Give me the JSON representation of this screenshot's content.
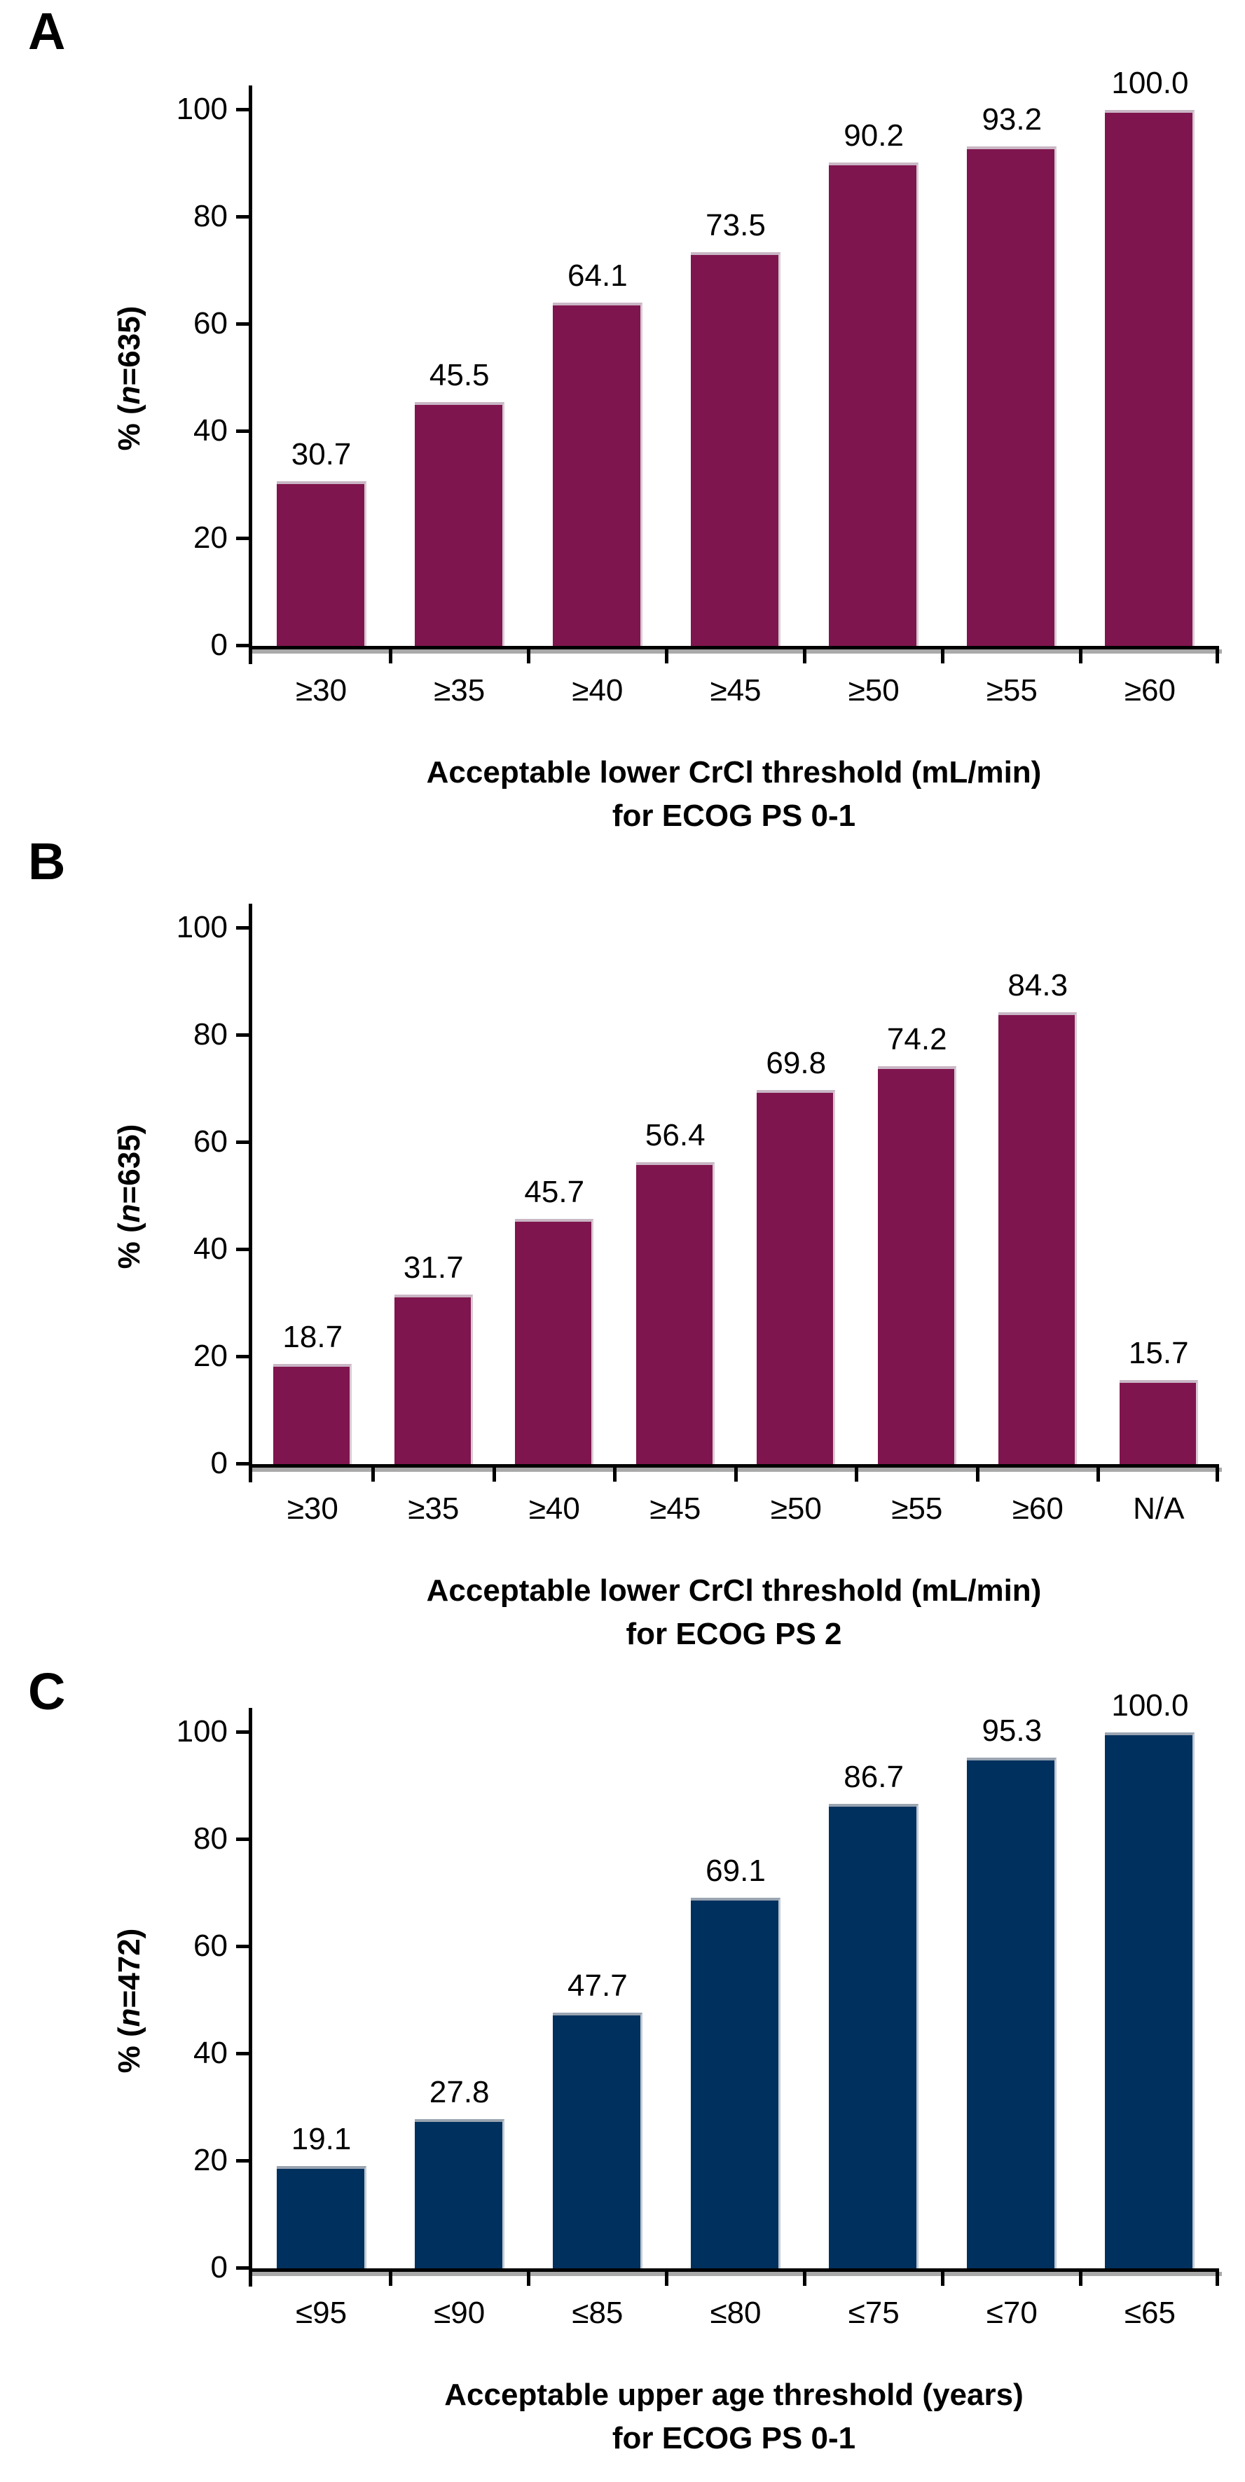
{
  "figure": {
    "background_color": "#FFFFFF",
    "text_color": "#000000",
    "axis_color": "#000000",
    "baseline_shadow_color": "#A9A9A9"
  },
  "chart_data": [
    {
      "panel": "A",
      "type": "bar",
      "categories": [
        "≥30",
        "≥35",
        "≥40",
        "≥45",
        "≥50",
        "≥55",
        "≥60"
      ],
      "values": [
        30.7,
        45.5,
        64.1,
        73.5,
        90.2,
        93.2,
        100.0
      ],
      "value_labels": [
        "30.7",
        "45.5",
        "64.1",
        "73.5",
        "90.2",
        "93.2",
        "100.0"
      ],
      "ylabel": {
        "prefix": "% (",
        "n": "n",
        "suffix": "=635)"
      },
      "xlabel_line1": "Acceptable lower CrCl threshold (mL/min)",
      "xlabel_line2": "for ECOG PS 0-1",
      "ylim": [
        0,
        100
      ],
      "yticks": [
        0,
        20,
        40,
        60,
        80,
        100
      ],
      "grid": false,
      "legend": "none",
      "bar_color": "#7F154E",
      "bar_top_edge": "#C9B6C4",
      "bar_right_edge": "#D8CBD4"
    },
    {
      "panel": "B",
      "type": "bar",
      "categories": [
        "≥30",
        "≥35",
        "≥40",
        "≥45",
        "≥50",
        "≥55",
        "≥60",
        "N/A"
      ],
      "values": [
        18.7,
        31.7,
        45.7,
        56.4,
        69.8,
        74.2,
        84.3,
        15.7
      ],
      "value_labels": [
        "18.7",
        "31.7",
        "45.7",
        "56.4",
        "69.8",
        "74.2",
        "84.3",
        "15.7"
      ],
      "ylabel": {
        "prefix": "% (",
        "n": "n",
        "suffix": "=635)"
      },
      "xlabel_line1": "Acceptable lower CrCl threshold (mL/min)",
      "xlabel_line2": "for ECOG PS 2",
      "ylim": [
        0,
        100
      ],
      "yticks": [
        0,
        20,
        40,
        60,
        80,
        100
      ],
      "grid": false,
      "legend": "none",
      "bar_color": "#7F154E",
      "bar_top_edge": "#C9B6C4",
      "bar_right_edge": "#D8CBD4"
    },
    {
      "panel": "C",
      "type": "bar",
      "categories": [
        "≤95",
        "≤90",
        "≤85",
        "≤80",
        "≤75",
        "≤70",
        "≤65"
      ],
      "values": [
        19.1,
        27.8,
        47.7,
        69.1,
        86.7,
        95.3,
        100.0
      ],
      "value_labels": [
        "19.1",
        "27.8",
        "47.7",
        "69.1",
        "86.7",
        "95.3",
        "100.0"
      ],
      "ylabel": {
        "prefix": "% (",
        "n": "n",
        "suffix": "=472)"
      },
      "xlabel_line1": "Acceptable upper age threshold (years)",
      "xlabel_line2": "for ECOG PS 0-1",
      "ylim": [
        0,
        100
      ],
      "yticks": [
        0,
        20,
        40,
        60,
        80,
        100
      ],
      "grid": false,
      "legend": "none",
      "bar_color": "#00305E",
      "bar_top_edge": "#99A4B1",
      "bar_right_edge": "#C2CAD3"
    }
  ]
}
